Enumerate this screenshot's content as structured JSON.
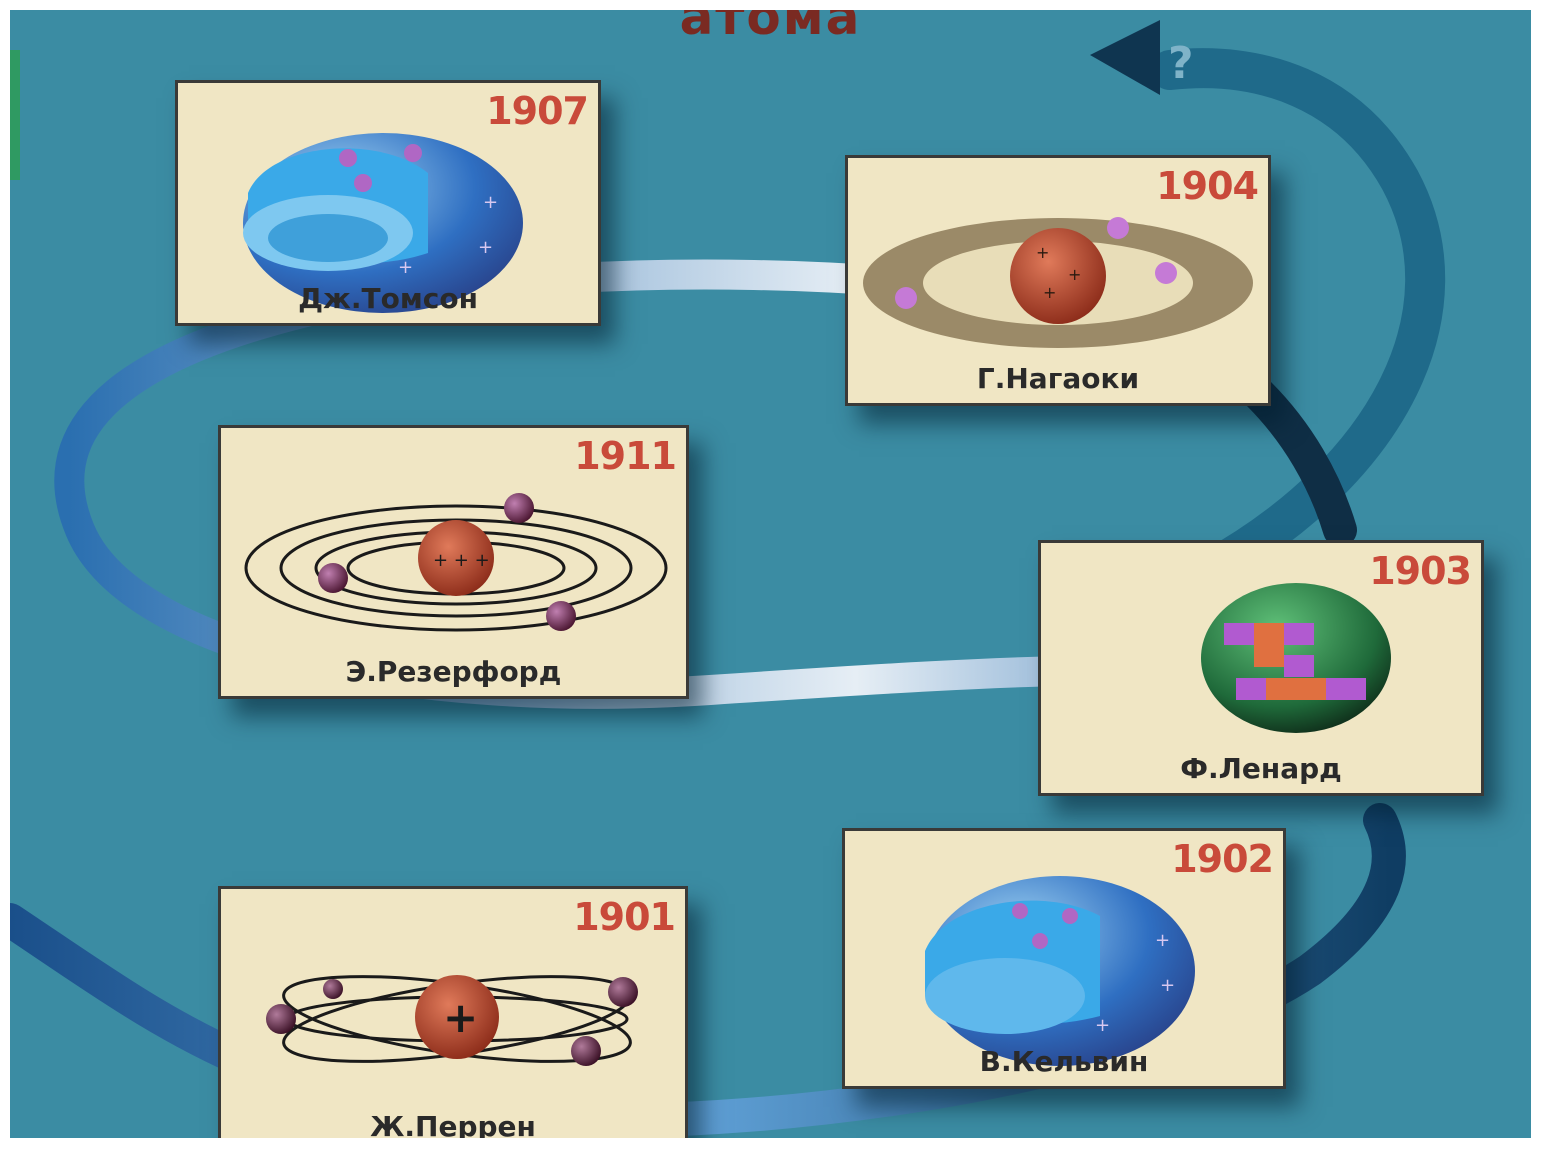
{
  "header": {
    "title": "атома"
  },
  "ribbon_end": {
    "symbol": "?"
  },
  "cards": [
    {
      "year": "1907",
      "name": "Дж.Томсон",
      "model": "thomson-hemisphere"
    },
    {
      "year": "1904",
      "name": "Г.Нагаоки",
      "model": "nagaoka-saturn"
    },
    {
      "year": "1911",
      "name": "Э.Резерфорд",
      "model": "rutherford-planetary"
    },
    {
      "year": "1903",
      "name": "Ф.Ленард",
      "model": "lenard-sphere"
    },
    {
      "year": "1902",
      "name": "В.Кельвин",
      "model": "kelvin-hemisphere"
    },
    {
      "year": "1901",
      "name": "Ж.Перрен",
      "model": "perrin-planetary"
    }
  ],
  "colors": {
    "background": "#3b8ca3",
    "card": "#f0e6c4",
    "year": "#c94a3a",
    "title": "#7a2a22"
  }
}
